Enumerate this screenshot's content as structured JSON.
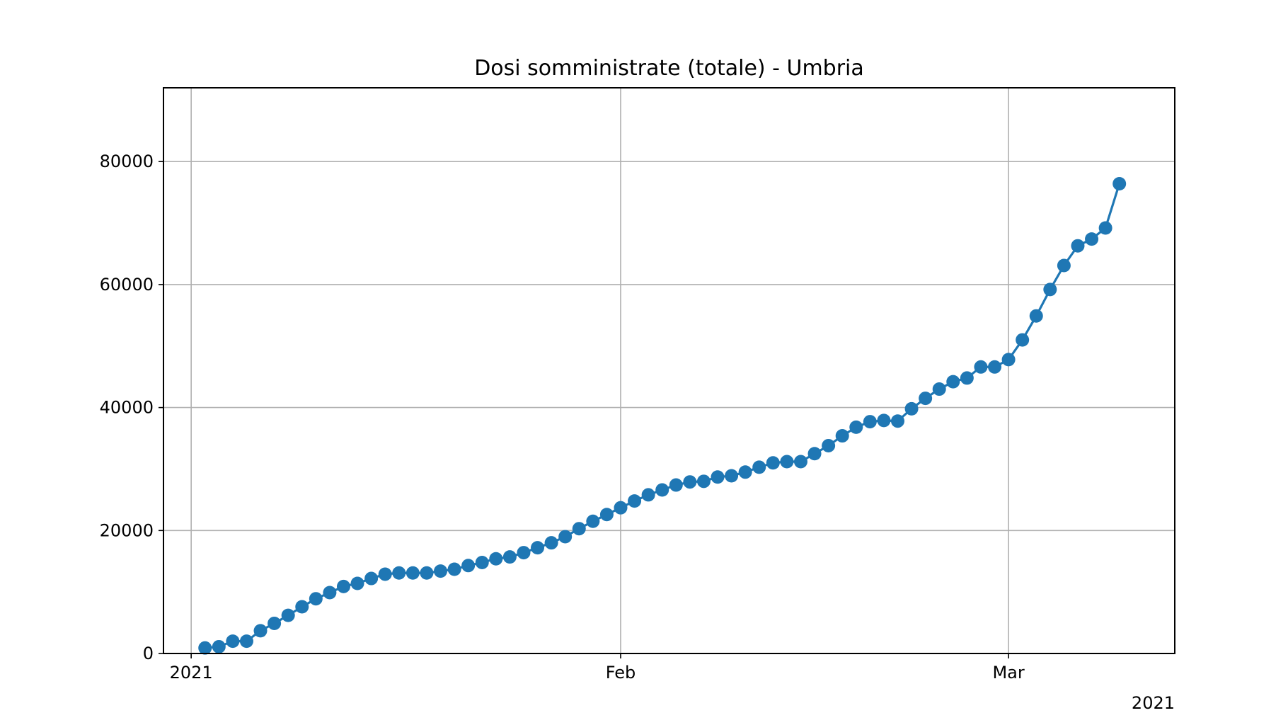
{
  "chart_data": {
    "type": "line",
    "title": "Dosi somministrate (totale) - Umbria",
    "xlabel": "",
    "ylabel": "",
    "x_axis": {
      "type": "date",
      "range": [
        "2020-12-30",
        "2021-03-13"
      ],
      "ticks": [
        {
          "date": "2021-01-01",
          "label": "2021"
        },
        {
          "date": "2021-02-01",
          "label": "Feb"
        },
        {
          "date": "2021-03-01",
          "label": "Mar"
        }
      ],
      "offset_label": "2021"
    },
    "y_axis": {
      "range": [
        0,
        92000
      ],
      "ticks": [
        0,
        20000,
        40000,
        60000,
        80000
      ]
    },
    "grid": true,
    "color": "#1f77b4",
    "series": [
      {
        "x": [
          "2021-01-02",
          "2021-01-03",
          "2021-01-04",
          "2021-01-05",
          "2021-01-06",
          "2021-01-07",
          "2021-01-08",
          "2021-01-09",
          "2021-01-10",
          "2021-01-11",
          "2021-01-12",
          "2021-01-13",
          "2021-01-14",
          "2021-01-15",
          "2021-01-16",
          "2021-01-17",
          "2021-01-18",
          "2021-01-19",
          "2021-01-20",
          "2021-01-21",
          "2021-01-22",
          "2021-01-23",
          "2021-01-24",
          "2021-01-25",
          "2021-01-26",
          "2021-01-27",
          "2021-01-28",
          "2021-01-29",
          "2021-01-30",
          "2021-01-31",
          "2021-02-01",
          "2021-02-02",
          "2021-02-03",
          "2021-02-04",
          "2021-02-05",
          "2021-02-06",
          "2021-02-07",
          "2021-02-08",
          "2021-02-09",
          "2021-02-10",
          "2021-02-11",
          "2021-02-12",
          "2021-02-13",
          "2021-02-14",
          "2021-02-15",
          "2021-02-16",
          "2021-02-17",
          "2021-02-18",
          "2021-02-19",
          "2021-02-20",
          "2021-02-21",
          "2021-02-22",
          "2021-02-23",
          "2021-02-24",
          "2021-02-25",
          "2021-02-26",
          "2021-02-27",
          "2021-02-28",
          "2021-03-01",
          "2021-03-02",
          "2021-03-03",
          "2021-03-04",
          "2021-03-05",
          "2021-03-06",
          "2021-03-07",
          "2021-03-08",
          "2021-03-09"
        ],
        "y": [
          900,
          1100,
          2000,
          2000,
          3700,
          4900,
          6200,
          7600,
          8900,
          9900,
          10900,
          11400,
          12200,
          12900,
          13100,
          13100,
          13100,
          13400,
          13700,
          14300,
          14800,
          15400,
          15700,
          16400,
          17200,
          18000,
          19000,
          20300,
          21500,
          22600,
          23700,
          24800,
          25800,
          26600,
          27400,
          27900,
          28000,
          28700,
          28900,
          29500,
          30300,
          31000,
          31200,
          31200,
          32500,
          33800,
          35400,
          36800,
          37700,
          37900,
          37800,
          39800,
          41500,
          43000,
          44200,
          44800,
          46600,
          46600,
          47800,
          51000,
          54900,
          59200,
          63100,
          66300,
          67400,
          69200,
          76400
        ]
      }
    ]
  }
}
